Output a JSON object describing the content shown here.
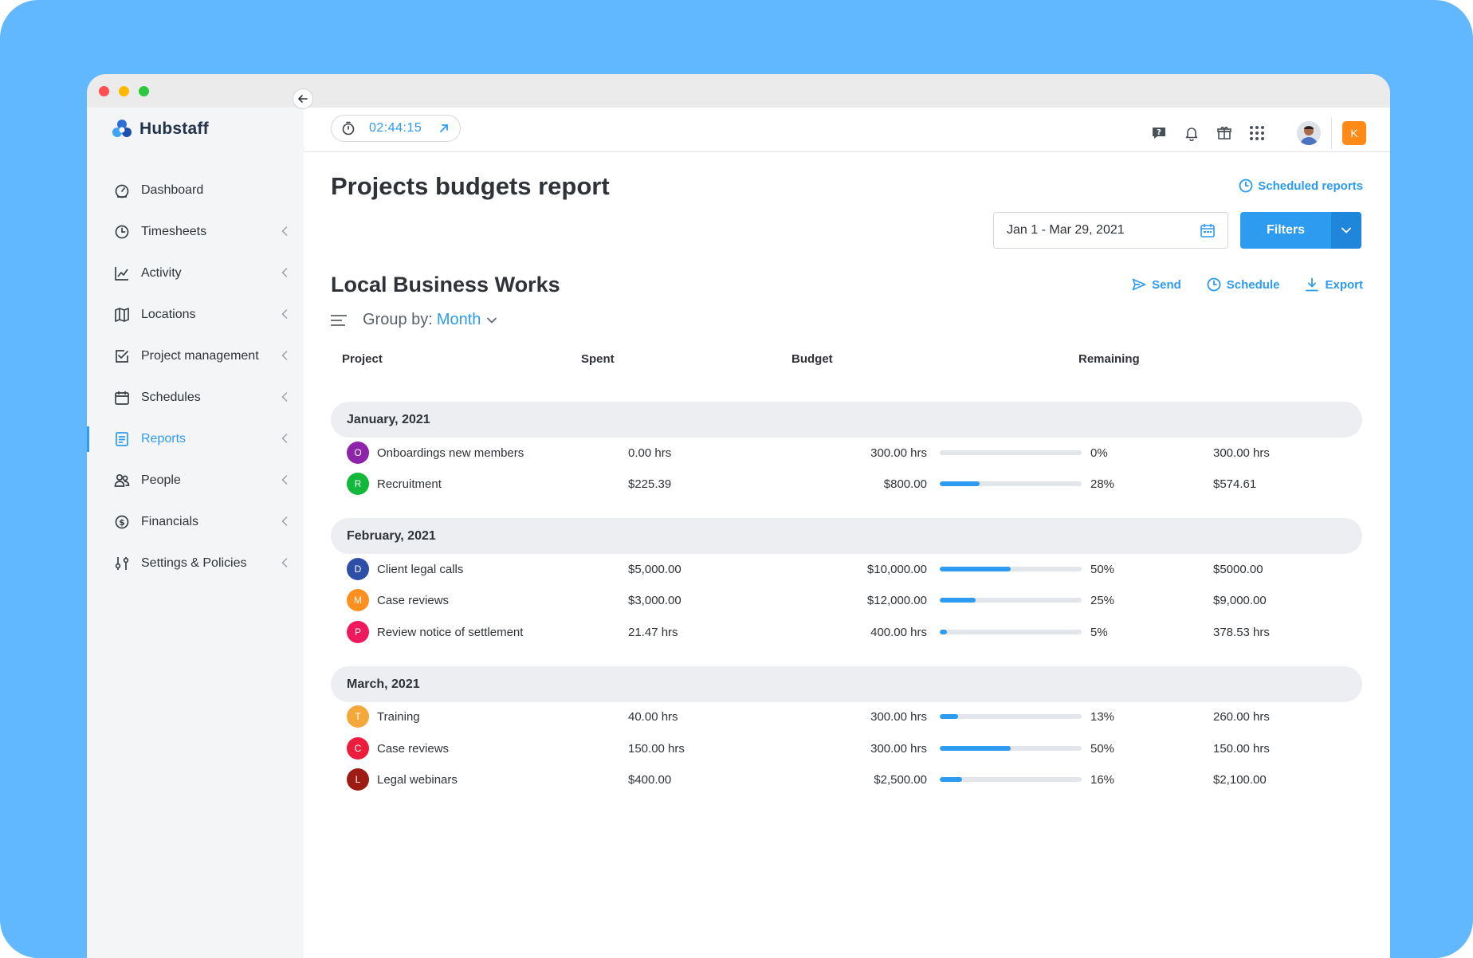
{
  "colors": {
    "accent": "#2d9bf0",
    "background": "#61b8ff",
    "org_badge": "#ff8a16"
  },
  "brand": {
    "name": "Hubstaff"
  },
  "sidebar": {
    "items": [
      {
        "label": "Dashboard",
        "icon": "dashboard-icon",
        "has_chevron": false,
        "active": false
      },
      {
        "label": "Timesheets",
        "icon": "clock-icon",
        "has_chevron": true,
        "active": false
      },
      {
        "label": "Activity",
        "icon": "activity-chart-icon",
        "has_chevron": true,
        "active": false
      },
      {
        "label": "Locations",
        "icon": "map-icon",
        "has_chevron": true,
        "active": false
      },
      {
        "label": "Project management",
        "icon": "checkbox-icon",
        "has_chevron": true,
        "active": false
      },
      {
        "label": "Schedules",
        "icon": "calendar-icon",
        "has_chevron": true,
        "active": false
      },
      {
        "label": "Reports",
        "icon": "report-icon",
        "has_chevron": true,
        "active": true
      },
      {
        "label": "People",
        "icon": "people-icon",
        "has_chevron": true,
        "active": false
      },
      {
        "label": "Financials",
        "icon": "dollar-icon",
        "has_chevron": true,
        "active": false
      },
      {
        "label": "Settings & Policies",
        "icon": "sliders-icon",
        "has_chevron": true,
        "active": false
      }
    ]
  },
  "topbar": {
    "timer": "02:44:15",
    "org_initial": "K"
  },
  "page": {
    "title": "Projects budgets report",
    "scheduled_reports": "Scheduled reports",
    "date_range": "Jan 1 - Mar 29, 2021",
    "filters_label": "Filters",
    "org_name": "Local Business Works",
    "actions": {
      "send": "Send",
      "schedule": "Schedule",
      "export": "Export"
    },
    "group_by_label": "Group by:",
    "group_by_value": "Month"
  },
  "table": {
    "columns": {
      "project": "Project",
      "spent": "Spent",
      "budget": "Budget",
      "remaining": "Remaining"
    },
    "groups": [
      {
        "label": "January, 2021",
        "rows": [
          {
            "initial": "O",
            "color": "#8e24aa",
            "project": "Onboardings new members",
            "spent": "0.00 hrs",
            "budget": "300.00 hrs",
            "percent": 0,
            "percent_label": "0%",
            "remaining": "300.00 hrs"
          },
          {
            "initial": "R",
            "color": "#12b83a",
            "project": "Recruitment",
            "spent": "$225.39",
            "budget": "$800.00",
            "percent": 28,
            "percent_label": "28%",
            "remaining": "$574.61"
          }
        ]
      },
      {
        "label": "February, 2021",
        "rows": [
          {
            "initial": "D",
            "color": "#2e4fa8",
            "project": "Client legal calls",
            "spent": "$5,000.00",
            "budget": "$10,000.00",
            "percent": 50,
            "percent_label": "50%",
            "remaining": "$5000.00"
          },
          {
            "initial": "M",
            "color": "#ff8f1f",
            "project": "Case reviews",
            "spent": "$3,000.00",
            "budget": "$12,000.00",
            "percent": 25,
            "percent_label": "25%",
            "remaining": "$9,000.00"
          },
          {
            "initial": "P",
            "color": "#f0195d",
            "project": "Review notice of settlement",
            "spent": "21.47 hrs",
            "budget": "400.00 hrs",
            "percent": 5,
            "percent_label": "5%",
            "remaining": "378.53 hrs"
          }
        ]
      },
      {
        "label": "March, 2021",
        "rows": [
          {
            "initial": "T",
            "color": "#f5a83a",
            "project": "Training",
            "spent": "40.00 hrs",
            "budget": "300.00 hrs",
            "percent": 13,
            "percent_label": "13%",
            "remaining": "260.00 hrs"
          },
          {
            "initial": "C",
            "color": "#ec1c3c",
            "project": "Case reviews",
            "spent": "150.00 hrs",
            "budget": "300.00 hrs",
            "percent": 50,
            "percent_label": "50%",
            "remaining": "150.00 hrs"
          },
          {
            "initial": "L",
            "color": "#9c1c14",
            "project": "Legal webinars",
            "spent": "$400.00",
            "budget": "$2,500.00",
            "percent": 16,
            "percent_label": "16%",
            "remaining": "$2,100.00"
          }
        ]
      }
    ]
  }
}
